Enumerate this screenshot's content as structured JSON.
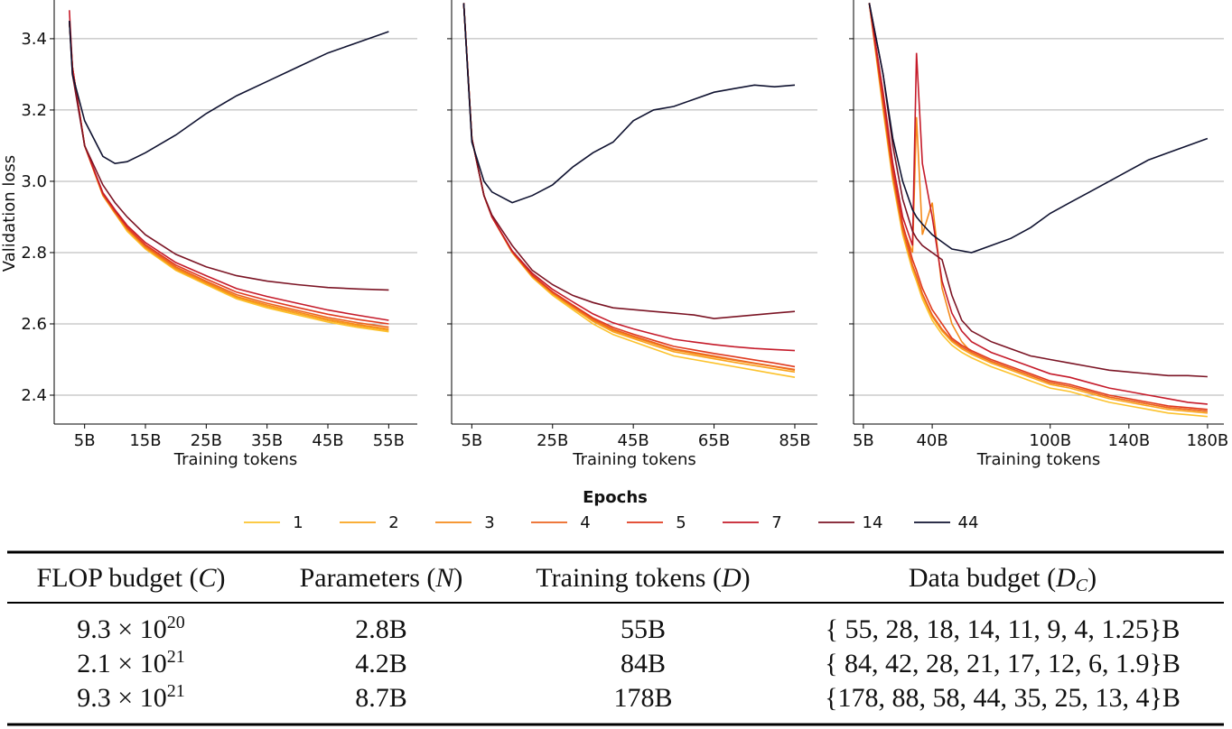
{
  "chart_data": [
    {
      "type": "line",
      "ylabel": "Validation loss",
      "xlabel": "Training tokens",
      "legend_title": "Epochs",
      "grid": true,
      "xlim": [
        0,
        59.7
      ],
      "ylim": [
        2.319,
        3.501
      ],
      "xticks": [
        {
          "value": 5,
          "label": "5B"
        },
        {
          "value": 15,
          "label": "15B"
        },
        {
          "value": 25,
          "label": "25B"
        },
        {
          "value": 35,
          "label": "35B"
        },
        {
          "value": 45,
          "label": "45B"
        },
        {
          "value": 55,
          "label": "55B"
        }
      ],
      "yticks": [
        2.4,
        2.6,
        2.8,
        {
          "value": 3.0,
          "label": "3.0"
        },
        3.2,
        3.4
      ],
      "x": [
        2.5,
        3,
        5,
        8,
        10,
        12,
        15,
        20,
        25,
        30,
        35,
        40,
        45,
        50,
        55
      ],
      "series": [
        {
          "name": "1",
          "color": "#fcc22c",
          "values": [
            3.45,
            3.32,
            3.1,
            2.96,
            2.91,
            2.86,
            2.81,
            2.75,
            2.71,
            2.67,
            2.645,
            2.625,
            2.605,
            2.59,
            2.578
          ]
        },
        {
          "name": "2",
          "color": "#f9a21c",
          "values": [
            3.45,
            3.32,
            3.1,
            2.96,
            2.91,
            2.865,
            2.813,
            2.753,
            2.713,
            2.674,
            2.649,
            2.629,
            2.609,
            2.594,
            2.582
          ]
        },
        {
          "name": "3",
          "color": "#f58a1a",
          "values": [
            3.45,
            3.32,
            3.1,
            2.962,
            2.912,
            2.866,
            2.815,
            2.756,
            2.716,
            2.677,
            2.653,
            2.633,
            2.613,
            2.598,
            2.586
          ]
        },
        {
          "name": "4",
          "color": "#ec6520",
          "values": [
            3.45,
            3.32,
            3.1,
            2.963,
            2.914,
            2.868,
            2.818,
            2.76,
            2.72,
            2.682,
            2.658,
            2.638,
            2.618,
            2.603,
            2.591
          ]
        },
        {
          "name": "5",
          "color": "#e03a1e",
          "values": [
            3.45,
            3.32,
            3.1,
            2.965,
            2.916,
            2.871,
            2.822,
            2.765,
            2.726,
            2.689,
            2.666,
            2.646,
            2.627,
            2.612,
            2.6
          ]
        },
        {
          "name": "7",
          "color": "#c51b2a",
          "values": [
            3.48,
            3.32,
            3.1,
            2.968,
            2.92,
            2.876,
            2.828,
            2.772,
            2.735,
            2.699,
            2.677,
            2.658,
            2.639,
            2.624,
            2.61
          ]
        },
        {
          "name": "14",
          "color": "#7b1424",
          "values": [
            3.45,
            3.3,
            3.1,
            2.99,
            2.94,
            2.9,
            2.85,
            2.795,
            2.76,
            2.735,
            2.72,
            2.71,
            2.702,
            2.698,
            2.695
          ]
        },
        {
          "name": "44",
          "color": "#0f1230",
          "values": [
            3.45,
            3.3,
            3.17,
            3.07,
            3.05,
            3.055,
            3.08,
            3.13,
            3.19,
            3.24,
            3.28,
            3.32,
            3.36,
            3.39,
            3.42
          ]
        }
      ]
    },
    {
      "type": "line",
      "xlabel": "Training tokens",
      "grid": true,
      "xlim": [
        0,
        90.6
      ],
      "ylim": [
        2.319,
        3.501
      ],
      "xticks": [
        {
          "value": 5,
          "label": "5B"
        },
        {
          "value": 25,
          "label": "25B"
        },
        {
          "value": 45,
          "label": "45B"
        },
        {
          "value": 65,
          "label": "65B"
        },
        {
          "value": 85,
          "label": "85B"
        }
      ],
      "yticks": [
        2.4,
        2.6,
        2.8,
        3.0,
        3.2,
        3.4
      ],
      "x": [
        3,
        5,
        8,
        10,
        15,
        20,
        25,
        30,
        35,
        40,
        45,
        50,
        55,
        60,
        65,
        70,
        75,
        80,
        85
      ],
      "series": [
        {
          "color": "#fcc22c",
          "values": [
            3.5,
            3.12,
            2.96,
            2.9,
            2.8,
            2.73,
            2.68,
            2.64,
            2.6,
            2.57,
            2.55,
            2.53,
            2.51,
            2.5,
            2.49,
            2.48,
            2.47,
            2.46,
            2.45
          ]
        },
        {
          "color": "#f9a21c",
          "values": [
            3.5,
            3.12,
            2.96,
            2.9,
            2.8,
            2.732,
            2.684,
            2.645,
            2.607,
            2.578,
            2.559,
            2.54,
            2.522,
            2.512,
            2.502,
            2.492,
            2.483,
            2.474,
            2.465
          ]
        },
        {
          "color": "#f58a1a",
          "values": [
            3.5,
            3.12,
            2.96,
            2.9,
            2.801,
            2.734,
            2.686,
            2.648,
            2.61,
            2.582,
            2.563,
            2.545,
            2.527,
            2.517,
            2.507,
            2.498,
            2.489,
            2.48,
            2.47
          ]
        },
        {
          "color": "#ec6520",
          "values": [
            3.5,
            3.12,
            2.96,
            2.9,
            2.802,
            2.735,
            2.688,
            2.65,
            2.613,
            2.585,
            2.566,
            2.548,
            2.53,
            2.52,
            2.51,
            2.5,
            2.49,
            2.481,
            2.472
          ]
        },
        {
          "color": "#e03a1e",
          "values": [
            3.5,
            3.12,
            2.96,
            2.9,
            2.803,
            2.737,
            2.69,
            2.653,
            2.617,
            2.59,
            2.571,
            2.554,
            2.537,
            2.527,
            2.517,
            2.508,
            2.499,
            2.49,
            2.48
          ]
        },
        {
          "color": "#c51b2a",
          "values": [
            3.5,
            3.12,
            2.96,
            2.9,
            2.805,
            2.742,
            2.697,
            2.662,
            2.628,
            2.603,
            2.586,
            2.571,
            2.557,
            2.549,
            2.542,
            2.536,
            2.531,
            2.528,
            2.525
          ]
        },
        {
          "color": "#7b1424",
          "values": [
            3.5,
            3.12,
            2.96,
            2.905,
            2.82,
            2.75,
            2.71,
            2.68,
            2.66,
            2.645,
            2.64,
            2.635,
            2.63,
            2.625,
            2.615,
            2.62,
            2.625,
            2.63,
            2.635
          ]
        },
        {
          "color": "#0f1230",
          "values": [
            3.5,
            3.11,
            3.0,
            2.97,
            2.94,
            2.96,
            2.99,
            3.04,
            3.08,
            3.11,
            3.17,
            3.2,
            3.21,
            3.23,
            3.25,
            3.26,
            3.27,
            3.265,
            3.27
          ]
        }
      ]
    },
    {
      "type": "line",
      "xlabel": "Training tokens",
      "grid": true,
      "xlim": [
        0,
        188.3
      ],
      "ylim": [
        2.319,
        3.501
      ],
      "xticks": [
        {
          "value": 5,
          "label": "5B"
        },
        {
          "value": 40,
          "label": "40B"
        },
        {
          "value": 100,
          "label": "100B"
        },
        {
          "value": 140,
          "label": "140B"
        },
        {
          "value": 180,
          "label": "180B"
        }
      ],
      "yticks": [
        2.4,
        2.6,
        2.8,
        3.0,
        3.2,
        3.4
      ],
      "x": [
        8,
        15,
        20,
        25,
        30,
        32,
        35,
        40,
        45,
        50,
        55,
        60,
        70,
        80,
        90,
        100,
        110,
        120,
        130,
        140,
        150,
        160,
        170,
        180
      ],
      "series": [
        {
          "color": "#fcc22c",
          "values": [
            3.5,
            3.2,
            3.0,
            2.85,
            2.75,
            2.72,
            2.67,
            2.61,
            2.57,
            2.54,
            2.52,
            2.505,
            2.48,
            2.46,
            2.44,
            2.42,
            2.41,
            2.395,
            2.38,
            2.37,
            2.36,
            2.35,
            2.345,
            2.34
          ]
        },
        {
          "color": "#f9a21c",
          "values": [
            3.5,
            3.21,
            3.01,
            2.86,
            2.76,
            2.73,
            2.68,
            2.62,
            2.58,
            2.55,
            2.53,
            2.515,
            2.49,
            2.47,
            2.45,
            2.43,
            2.42,
            2.405,
            2.39,
            2.38,
            2.37,
            2.36,
            2.355,
            2.35
          ]
        },
        {
          "color": "#f58a1a",
          "values": [
            3.5,
            3.22,
            3.02,
            2.87,
            2.8,
            3.18,
            2.85,
            2.94,
            2.7,
            2.6,
            2.55,
            2.52,
            2.495,
            2.475,
            2.455,
            2.435,
            2.425,
            2.41,
            2.395,
            2.385,
            2.375,
            2.365,
            2.36,
            2.355
          ]
        },
        {
          "color": "#ec6520",
          "values": [
            3.5,
            3.215,
            3.015,
            2.865,
            2.765,
            2.735,
            2.685,
            2.625,
            2.585,
            2.555,
            2.535,
            2.52,
            2.495,
            2.475,
            2.455,
            2.435,
            2.425,
            2.41,
            2.395,
            2.385,
            2.375,
            2.365,
            2.36,
            2.355
          ]
        },
        {
          "color": "#e03a1e",
          "values": [
            3.5,
            3.23,
            3.03,
            2.88,
            2.78,
            2.75,
            2.7,
            2.64,
            2.6,
            2.56,
            2.54,
            2.525,
            2.5,
            2.48,
            2.46,
            2.44,
            2.43,
            2.415,
            2.4,
            2.39,
            2.38,
            2.37,
            2.365,
            2.36
          ]
        },
        {
          "color": "#c51b2a",
          "values": [
            3.5,
            3.25,
            3.05,
            2.9,
            2.82,
            3.36,
            3.05,
            2.9,
            2.72,
            2.63,
            2.58,
            2.55,
            2.52,
            2.5,
            2.48,
            2.46,
            2.45,
            2.435,
            2.42,
            2.41,
            2.4,
            2.39,
            2.38,
            2.375
          ]
        },
        {
          "color": "#7b1424",
          "values": [
            3.5,
            3.3,
            3.1,
            2.95,
            2.86,
            2.84,
            2.82,
            2.8,
            2.78,
            2.68,
            2.61,
            2.58,
            2.55,
            2.53,
            2.51,
            2.5,
            2.49,
            2.48,
            2.47,
            2.465,
            2.46,
            2.455,
            2.455,
            2.452
          ]
        },
        {
          "color": "#0f1230",
          "values": [
            3.5,
            3.3,
            3.12,
            3.0,
            2.92,
            2.9,
            2.88,
            2.85,
            2.83,
            2.81,
            2.805,
            2.8,
            2.82,
            2.84,
            2.87,
            2.91,
            2.94,
            2.97,
            3.0,
            3.03,
            3.06,
            3.08,
            3.1,
            3.12
          ]
        }
      ]
    }
  ],
  "table": {
    "header": [
      [
        {
          "text": "FLOP budget ("
        },
        {
          "text": "C",
          "style": "italic"
        },
        {
          "text": ")"
        }
      ],
      [
        {
          "text": "Parameters ("
        },
        {
          "text": "N",
          "style": "italic"
        },
        {
          "text": ")"
        }
      ],
      [
        {
          "text": "Training tokens ("
        },
        {
          "text": "D",
          "style": "italic"
        },
        {
          "text": ")"
        }
      ],
      [
        {
          "text": "Data budget ("
        },
        {
          "text": "D",
          "style": "italic"
        },
        {
          "text": "C",
          "style": "sub"
        },
        {
          "text": ")"
        }
      ]
    ],
    "rows": [
      [
        [
          {
            "text": "9.3 × 10"
          },
          {
            "text": "20",
            "style": "sup"
          }
        ],
        [
          {
            "text": "2.8B"
          }
        ],
        [
          {
            "text": "55B"
          }
        ],
        [
          {
            "text": "{ 55, 28, 18, 14, 11, 9, 4, 1.25}B"
          }
        ]
      ],
      [
        [
          {
            "text": "2.1 × 10"
          },
          {
            "text": "21",
            "style": "sup"
          }
        ],
        [
          {
            "text": "4.2B"
          }
        ],
        [
          {
            "text": "84B"
          }
        ],
        [
          {
            "text": "{ 84, 42, 28, 21, 17, 12, 6, 1.9}B"
          }
        ]
      ],
      [
        [
          {
            "text": "9.3 × 10"
          },
          {
            "text": "21",
            "style": "sup"
          }
        ],
        [
          {
            "text": "8.7B"
          }
        ],
        [
          {
            "text": "178B"
          }
        ],
        [
          {
            "text": "{178, 88, 58, 44, 35, 25, 13, 4}B"
          }
        ]
      ]
    ]
  }
}
